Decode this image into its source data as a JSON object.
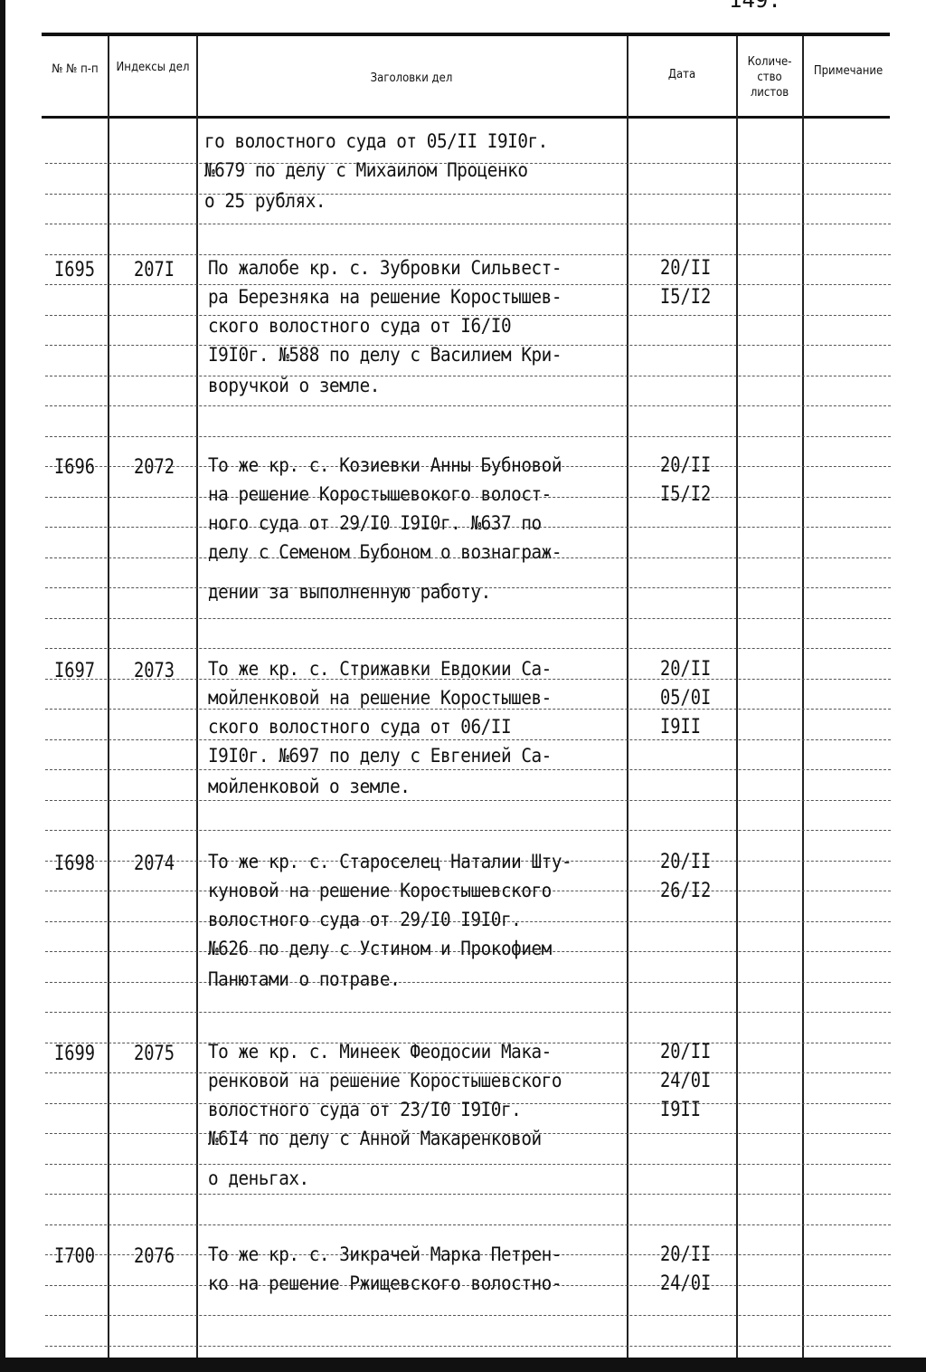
{
  "page_number": "149.",
  "header": {
    "col_no": "№ № п-п",
    "col_index": "Индексы дел",
    "col_title": "Заголовки дел",
    "col_date": "Дата",
    "col_sheets": "Количе-ство листов",
    "col_note": "Примечание"
  },
  "continuation": {
    "lines": [
      "го волостного суда от 05/II I9I0г.",
      "№679 по делу с Михаилом Проценко",
      "о 25 рублях."
    ]
  },
  "entries": [
    {
      "no": "I695",
      "index": "207I",
      "dates": [
        "20/II",
        "I5/I2"
      ],
      "lines": [
        "По жалобе кр. с. Зубровки Сильвест-",
        "ра Березняка на решение Коростышев-",
        "ского волостного суда от I6/I0",
        "I9I0г. №588 по делу с Василием Кри-",
        "воручкой о земле."
      ]
    },
    {
      "no": "I696",
      "index": "2072",
      "dates": [
        "20/II",
        "I5/I2"
      ],
      "lines": [
        "То же кр. с. Козиевки Анны Бубновой",
        "на решение Коростышевокого волост-",
        "ного суда от 29/I0 I9I0г. №637 по",
        "делу с Семеном Бубоном о вознаграж-",
        "дении за выполненную работу."
      ]
    },
    {
      "no": "I697",
      "index": "2073",
      "dates": [
        "20/II",
        "05/0I",
        "I9II"
      ],
      "lines": [
        "То же кр. с. Стрижавки Евдокии Са-",
        "мойленковой на решение Коростышев-",
        "ского волостного суда от 06/II",
        "I9I0г. №697 по делу с Евгенией Са-",
        "мойленковой о земле."
      ]
    },
    {
      "no": "I698",
      "index": "2074",
      "dates": [
        "20/II",
        "26/I2"
      ],
      "lines": [
        "То же кр. с. Староселец Наталии Шту-",
        "куновой на решение Коростышевского",
        "волостного суда от 29/I0 I9I0г.",
        "№626 по делу с Устином и Прокофием",
        "Панютами о потраве."
      ]
    },
    {
      "no": "I699",
      "index": "2075",
      "dates": [
        "20/II",
        "24/0I",
        "I9II"
      ],
      "lines": [
        "То же кр. с. Минеек Феодосии Мака-",
        "ренковой на решение Коростышевского",
        "волостного суда от 23/I0 I9I0г.",
        "№6I4 по делу с Анной Макаренковой",
        "о деньгах."
      ]
    },
    {
      "no": "I700",
      "index": "2076",
      "dates": [
        "20/II",
        "24/0I"
      ],
      "lines": [
        "То же кр. с. Зикрачей Марка Петрен-",
        "ко на решение Ржищевского волостно-"
      ]
    }
  ]
}
